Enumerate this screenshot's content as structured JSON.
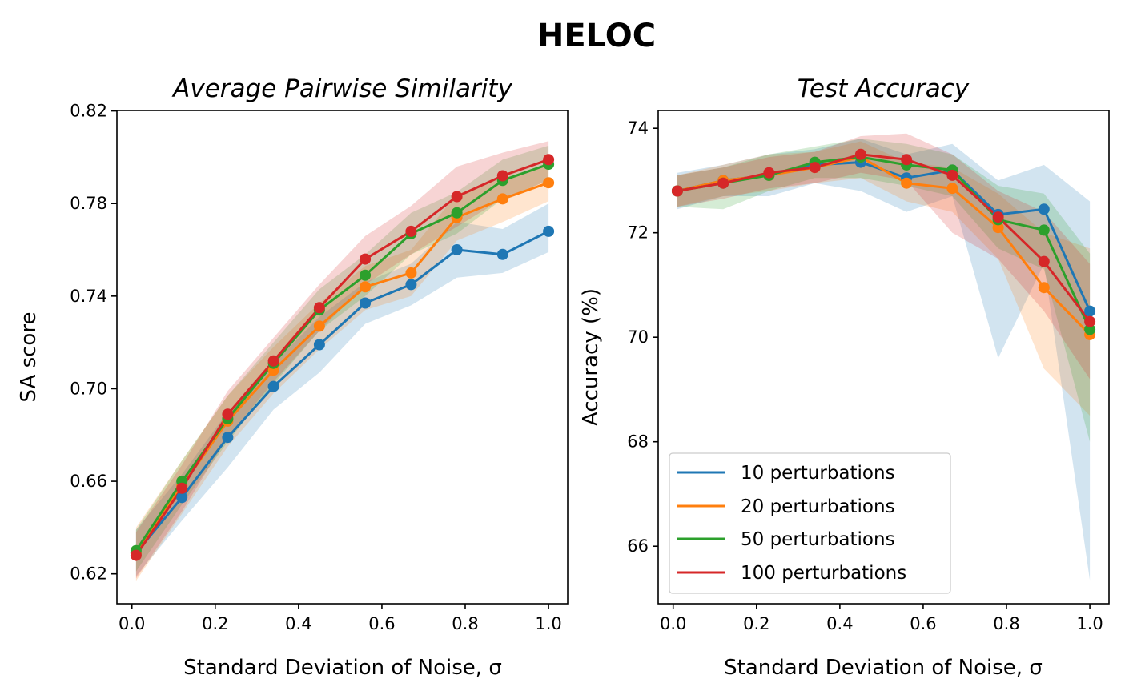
{
  "figure": {
    "suptitle": "HELOC"
  },
  "legend": {
    "entries": [
      {
        "label": "10 perturbations",
        "color": "#1f77b4"
      },
      {
        "label": "20 perturbations",
        "color": "#ff7f0e"
      },
      {
        "label": "50 perturbations",
        "color": "#2ca02c"
      },
      {
        "label": "100 perturbations",
        "color": "#d62728"
      }
    ],
    "location": "lower-left",
    "panel": "right"
  },
  "chart_data": [
    {
      "type": "line",
      "title": "Average Pairwise Similarity",
      "xlabel": "Standard Deviation of Noise, σ",
      "ylabel": "SA score",
      "xlim": [
        -0.036,
        1.046
      ],
      "ylim": [
        0.6071,
        0.8202
      ],
      "xticks": [
        0.0,
        0.2,
        0.4,
        0.6,
        0.8,
        1.0
      ],
      "xtick_labels": [
        "0.0",
        "0.2",
        "0.4",
        "0.6",
        "0.8",
        "1.0"
      ],
      "yticks": [
        0.62,
        0.66,
        0.7,
        0.74,
        0.78,
        0.82
      ],
      "ytick_labels": [
        "0.62",
        "0.66",
        "0.70",
        "0.74",
        "0.78",
        "0.82"
      ],
      "grid": false,
      "x": [
        0.01,
        0.12,
        0.23,
        0.34,
        0.45,
        0.56,
        0.67,
        0.78,
        0.89,
        1.0
      ],
      "series": [
        {
          "name": "10 perturbations",
          "color": "#1f77b4",
          "values": [
            0.629,
            0.653,
            0.679,
            0.701,
            0.719,
            0.737,
            0.745,
            0.76,
            0.758,
            0.768
          ],
          "lower": [
            0.619,
            0.643,
            0.666,
            0.691,
            0.707,
            0.728,
            0.736,
            0.748,
            0.75,
            0.759
          ],
          "upper": [
            0.639,
            0.663,
            0.69,
            0.711,
            0.731,
            0.746,
            0.754,
            0.772,
            0.769,
            0.78
          ]
        },
        {
          "name": "20 perturbations",
          "color": "#ff7f0e",
          "values": [
            0.629,
            0.658,
            0.686,
            0.708,
            0.727,
            0.744,
            0.75,
            0.774,
            0.782,
            0.789
          ],
          "lower": [
            0.617,
            0.646,
            0.675,
            0.698,
            0.717,
            0.734,
            0.74,
            0.764,
            0.772,
            0.781
          ],
          "upper": [
            0.64,
            0.669,
            0.697,
            0.718,
            0.737,
            0.753,
            0.76,
            0.784,
            0.791,
            0.797
          ]
        },
        {
          "name": "50 perturbations",
          "color": "#2ca02c",
          "values": [
            0.63,
            0.66,
            0.687,
            0.711,
            0.734,
            0.749,
            0.767,
            0.776,
            0.79,
            0.797
          ],
          "lower": [
            0.621,
            0.65,
            0.677,
            0.702,
            0.725,
            0.74,
            0.758,
            0.767,
            0.782,
            0.79
          ],
          "upper": [
            0.639,
            0.669,
            0.697,
            0.72,
            0.743,
            0.758,
            0.776,
            0.785,
            0.799,
            0.805
          ]
        },
        {
          "name": "100 perturbations",
          "color": "#d62728",
          "values": [
            0.628,
            0.657,
            0.689,
            0.712,
            0.735,
            0.756,
            0.768,
            0.783,
            0.792,
            0.799
          ],
          "lower": [
            0.618,
            0.647,
            0.679,
            0.703,
            0.725,
            0.745,
            0.758,
            0.77,
            0.782,
            0.79
          ],
          "upper": [
            0.638,
            0.667,
            0.699,
            0.722,
            0.745,
            0.766,
            0.779,
            0.796,
            0.802,
            0.807
          ]
        }
      ]
    },
    {
      "type": "line",
      "title": "Test Accuracy",
      "xlabel": "Standard Deviation of Noise, σ",
      "ylabel": "Accuracy (%)",
      "xlim": [
        -0.036,
        1.046
      ],
      "ylim": [
        64.9,
        74.34
      ],
      "xticks": [
        0.0,
        0.2,
        0.4,
        0.6,
        0.8,
        1.0
      ],
      "xtick_labels": [
        "0.0",
        "0.2",
        "0.4",
        "0.6",
        "0.8",
        "1.0"
      ],
      "yticks": [
        66,
        68,
        70,
        72,
        74
      ],
      "ytick_labels": [
        "66",
        "68",
        "70",
        "72",
        "74"
      ],
      "grid": false,
      "x": [
        0.01,
        0.12,
        0.23,
        0.34,
        0.45,
        0.56,
        0.67,
        0.78,
        0.89,
        1.0
      ],
      "series": [
        {
          "name": "10 perturbations",
          "color": "#1f77b4",
          "values": [
            72.8,
            73.0,
            73.1,
            73.3,
            73.35,
            73.05,
            73.2,
            72.35,
            72.45,
            70.5
          ],
          "lower": [
            72.45,
            72.7,
            72.7,
            72.95,
            72.8,
            72.4,
            72.7,
            69.6,
            71.4,
            65.35
          ],
          "upper": [
            73.15,
            73.3,
            73.5,
            73.6,
            73.8,
            73.5,
            73.7,
            73.0,
            73.3,
            72.6
          ]
        },
        {
          "name": "20 perturbations",
          "color": "#ff7f0e",
          "values": [
            72.8,
            73.0,
            73.1,
            73.25,
            73.45,
            72.95,
            72.85,
            72.1,
            70.95,
            70.05
          ],
          "lower": [
            72.5,
            72.7,
            72.8,
            72.95,
            73.05,
            72.6,
            72.4,
            71.5,
            69.4,
            68.5
          ],
          "upper": [
            73.1,
            73.3,
            73.5,
            73.55,
            73.75,
            73.35,
            73.25,
            72.75,
            72.0,
            71.7
          ]
        },
        {
          "name": "50 perturbations",
          "color": "#2ca02c",
          "values": [
            72.8,
            72.95,
            73.1,
            73.35,
            73.45,
            73.3,
            73.2,
            72.25,
            72.05,
            70.15
          ],
          "lower": [
            72.5,
            72.45,
            72.8,
            73.05,
            73.05,
            72.9,
            72.7,
            71.7,
            71.3,
            68.0
          ],
          "upper": [
            73.1,
            73.25,
            73.5,
            73.65,
            73.8,
            73.7,
            73.5,
            72.9,
            72.75,
            71.6
          ]
        },
        {
          "name": "100 perturbations",
          "color": "#d62728",
          "values": [
            72.8,
            72.95,
            73.15,
            73.25,
            73.5,
            73.4,
            73.1,
            72.3,
            71.45,
            70.3
          ],
          "lower": [
            72.5,
            72.65,
            72.85,
            72.95,
            73.15,
            73.0,
            72.0,
            71.5,
            70.5,
            69.2
          ],
          "upper": [
            73.1,
            73.25,
            73.45,
            73.55,
            73.85,
            73.9,
            73.5,
            72.8,
            72.4,
            71.4
          ]
        }
      ]
    }
  ]
}
